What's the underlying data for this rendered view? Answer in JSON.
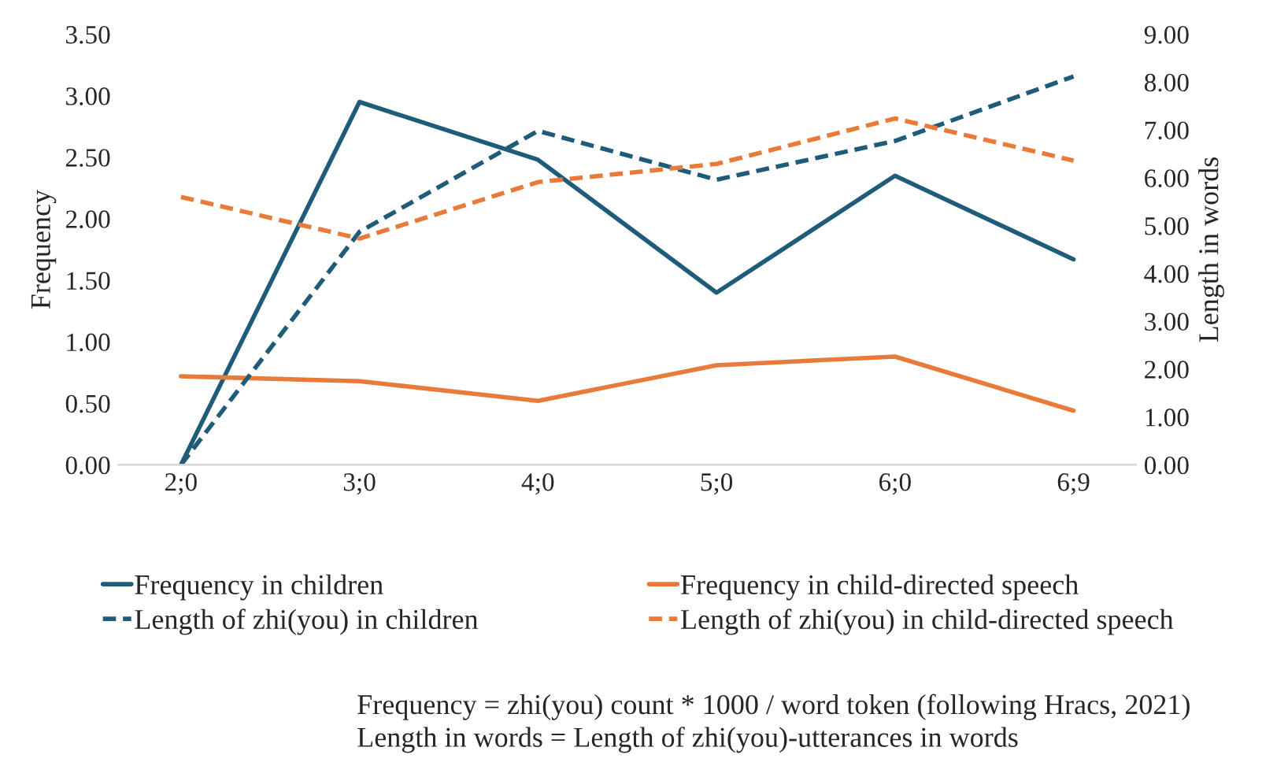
{
  "chart_data": {
    "type": "line",
    "categories": [
      "2;0",
      "3;0",
      "4;0",
      "5;0",
      "6;0",
      "6;9"
    ],
    "ylabel": "Frequency",
    "y2label": "Length in words",
    "ylim": [
      0,
      3.5
    ],
    "yticks": [
      {
        "value": 0,
        "label": "0.00"
      },
      {
        "value": 0.5,
        "label": "0.50"
      },
      {
        "value": 1,
        "label": "1.00"
      },
      {
        "value": 1.5,
        "label": "1.50"
      },
      {
        "value": 2,
        "label": "2.00"
      },
      {
        "value": 2.5,
        "label": "2.50"
      },
      {
        "value": 3,
        "label": "3.00"
      },
      {
        "value": 3.5,
        "label": "3.50"
      }
    ],
    "y2lim": [
      0,
      9
    ],
    "y2ticks": [
      {
        "value": 0,
        "label": "0.00"
      },
      {
        "value": 1,
        "label": "1.00"
      },
      {
        "value": 2,
        "label": "2.00"
      },
      {
        "value": 3,
        "label": "3.00"
      },
      {
        "value": 4,
        "label": "4.00"
      },
      {
        "value": 5,
        "label": "5.00"
      },
      {
        "value": 6,
        "label": "6.00"
      },
      {
        "value": 7,
        "label": "7.00"
      },
      {
        "value": 8,
        "label": "8.00"
      },
      {
        "value": 9,
        "label": "9.00"
      }
    ],
    "series": [
      {
        "name": "Frequency in children",
        "color": "#1f5c7a",
        "values": [
          0,
          2.95,
          2.48,
          1.4,
          2.35,
          1.67
        ],
        "line_style": "solid"
      },
      {
        "name": "Frequency in child-directed speech",
        "color": "#e87a3a",
        "values": [
          0.72,
          0.68,
          0.52,
          0.81,
          0.88,
          0.44
        ],
        "line_style": "solid"
      },
      {
        "name": "Length of zhi(you) in children",
        "color": "#1f5c7a",
        "values": [
          0,
          4.87,
          6.98,
          5.96,
          6.77,
          8.12
        ],
        "axis": "y2",
        "line_style": "dashed"
      },
      {
        "name": "Length of zhi(you) in child-directed speech",
        "color": "#e87a3a",
        "values": [
          5.6,
          4.73,
          5.91,
          6.29,
          7.24,
          6.36
        ],
        "axis": "y2",
        "line_style": "dashed"
      }
    ],
    "legend": "bottom",
    "grid": false,
    "marker": "none",
    "annotations": [
      "Frequency = zhi(you) count * 1000 / word token (following Hracs, 2021)",
      "Length in words = Length of zhi(you)-utterances in words"
    ]
  }
}
